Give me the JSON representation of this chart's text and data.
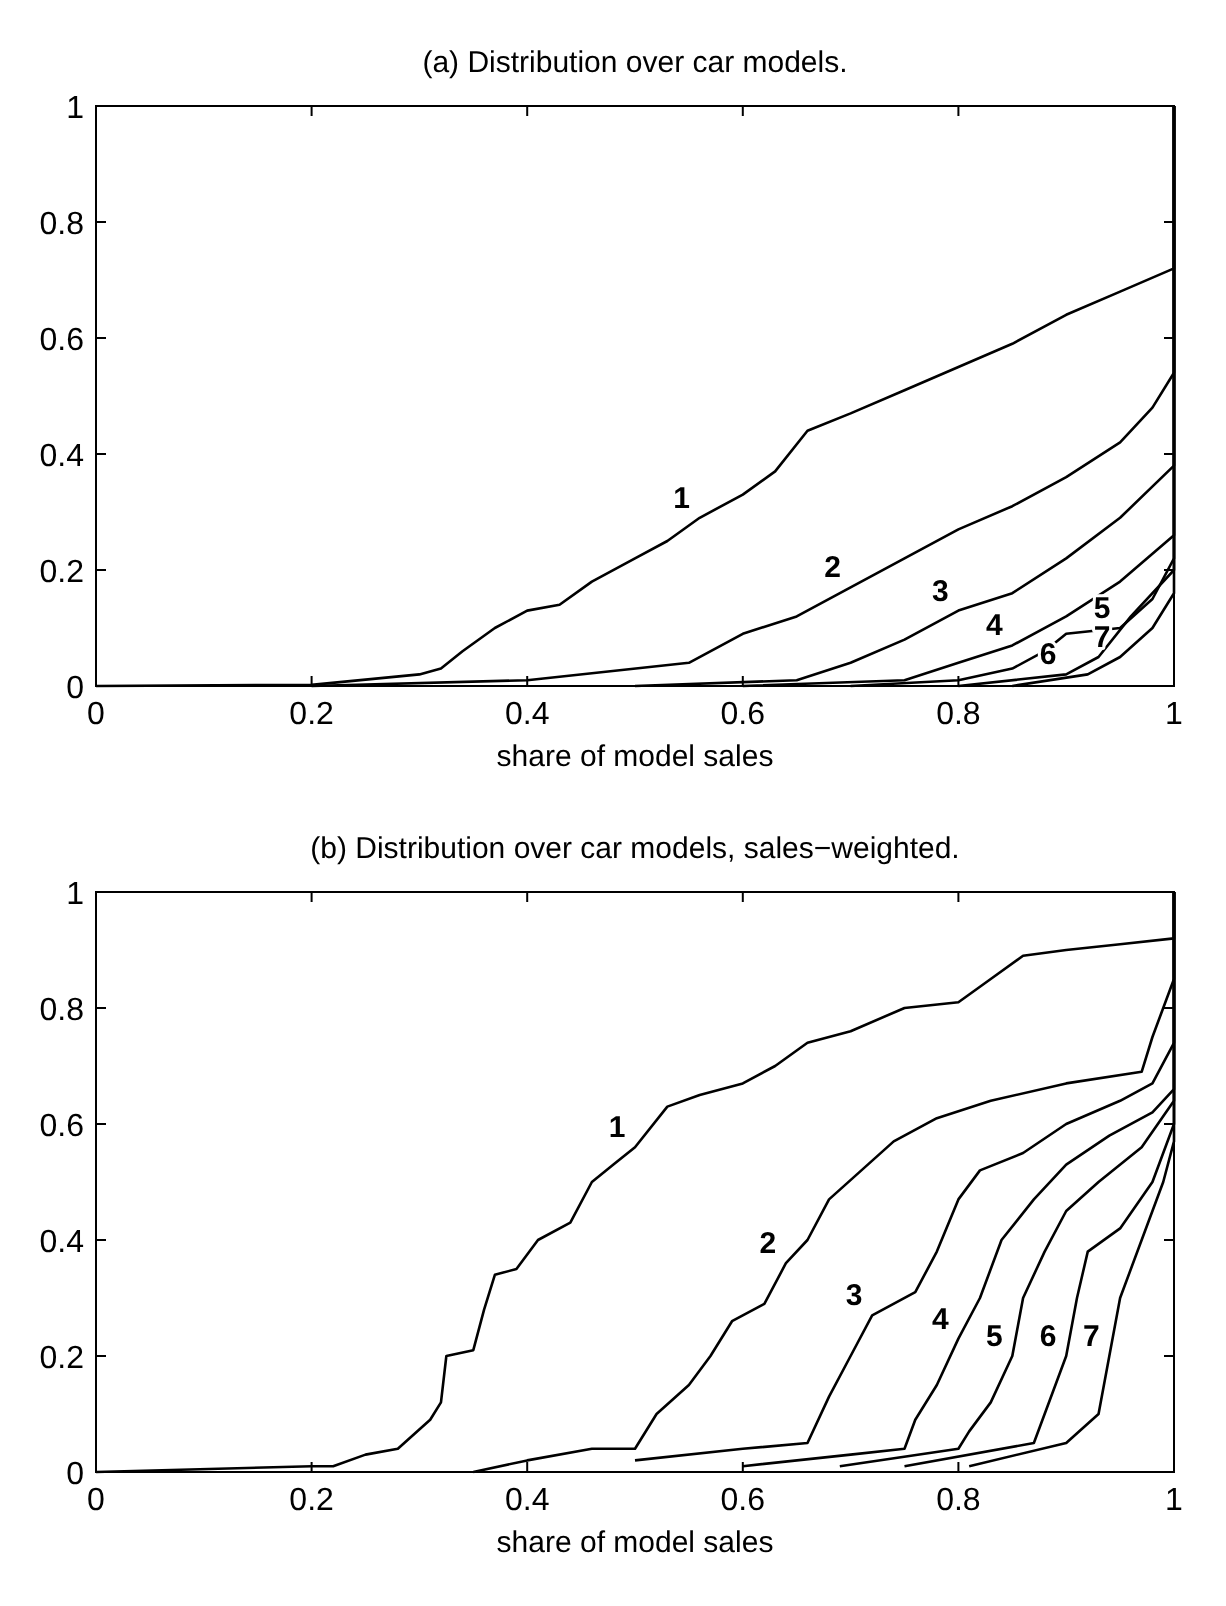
{
  "chart_data": [
    {
      "type": "line",
      "title": "(a) Distribution over car models.",
      "xlabel": "share of model sales",
      "xlim": [
        0,
        1
      ],
      "ylim": [
        0,
        1
      ],
      "xticks": [
        0,
        0.2,
        0.4,
        0.6,
        0.8,
        1
      ],
      "yticks": [
        0,
        0.2,
        0.4,
        0.6,
        0.8,
        1
      ],
      "series": [
        {
          "color": "#000000",
          "x": [
            0,
            0.2,
            0.3,
            0.32,
            0.34,
            0.37,
            0.4,
            0.43,
            0.46,
            0.5,
            0.53,
            0.56,
            0.6,
            0.63,
            0.66,
            0.7,
            0.75,
            0.8,
            0.85,
            0.9,
            0.95,
            1,
            1
          ],
          "values": [
            0,
            0.002,
            0.02,
            0.03,
            0.06,
            0.1,
            0.13,
            0.14,
            0.18,
            0.22,
            0.25,
            0.29,
            0.33,
            0.37,
            0.44,
            0.47,
            0.51,
            0.55,
            0.59,
            0.64,
            0.68,
            0.72,
            1
          ]
        },
        {
          "color": "#000000",
          "x": [
            0.2,
            0.4,
            0.55,
            0.6,
            0.65,
            0.7,
            0.75,
            0.8,
            0.85,
            0.9,
            0.95,
            0.98,
            1,
            1
          ],
          "values": [
            0,
            0.01,
            0.04,
            0.09,
            0.12,
            0.17,
            0.22,
            0.27,
            0.31,
            0.36,
            0.42,
            0.48,
            0.54,
            1
          ]
        },
        {
          "color": "#000000",
          "x": [
            0.5,
            0.65,
            0.7,
            0.75,
            0.8,
            0.85,
            0.9,
            0.95,
            1,
            1
          ],
          "values": [
            0,
            0.01,
            0.04,
            0.08,
            0.13,
            0.16,
            0.22,
            0.29,
            0.38,
            1
          ]
        },
        {
          "color": "#000000",
          "x": [
            0.6,
            0.75,
            0.8,
            0.85,
            0.9,
            0.95,
            1,
            1
          ],
          "values": [
            0,
            0.01,
            0.04,
            0.07,
            0.12,
            0.18,
            0.26,
            1
          ]
        },
        {
          "color": "#000000",
          "x": [
            0.7,
            0.8,
            0.85,
            0.88,
            0.9,
            0.95,
            0.98,
            1,
            1
          ],
          "values": [
            0,
            0.01,
            0.03,
            0.06,
            0.09,
            0.1,
            0.15,
            0.22,
            1
          ]
        },
        {
          "color": "#000000",
          "x": [
            0.8,
            0.9,
            0.93,
            0.96,
            1,
            1
          ],
          "values": [
            0,
            0.02,
            0.05,
            0.12,
            0.2,
            1
          ]
        },
        {
          "color": "#000000",
          "x": [
            0.85,
            0.92,
            0.95,
            0.98,
            1,
            1
          ],
          "values": [
            0,
            0.02,
            0.05,
            0.1,
            0.16,
            1
          ]
        }
      ],
      "annotations": [
        {
          "text": "1",
          "x": 0.56,
          "y": 0.29
        },
        {
          "text": "2",
          "x": 0.7,
          "y": 0.17
        },
        {
          "text": "3",
          "x": 0.8,
          "y": 0.13
        },
        {
          "text": "4",
          "x": 0.85,
          "y": 0.07
        },
        {
          "text": "5",
          "x": 0.95,
          "y": 0.1
        },
        {
          "text": "6",
          "x": 0.9,
          "y": 0.02
        },
        {
          "text": "7",
          "x": 0.95,
          "y": 0.05
        }
      ]
    },
    {
      "type": "line",
      "title": "(b) Distribution over car models, sales−weighted.",
      "xlabel": "share of model sales",
      "xlim": [
        0,
        1
      ],
      "ylim": [
        0,
        1
      ],
      "xticks": [
        0,
        0.2,
        0.4,
        0.6,
        0.8,
        1
      ],
      "yticks": [
        0,
        0.2,
        0.4,
        0.6,
        0.8,
        1
      ],
      "series": [
        {
          "color": "#000000",
          "x": [
            0,
            0.2,
            0.22,
            0.25,
            0.28,
            0.31,
            0.32,
            0.325,
            0.35,
            0.36,
            0.37,
            0.39,
            0.41,
            0.44,
            0.46,
            0.48,
            0.5,
            0.53,
            0.56,
            0.6,
            0.63,
            0.66,
            0.7,
            0.75,
            0.8,
            0.83,
            0.86,
            0.9,
            0.95,
            1,
            1
          ],
          "values": [
            0,
            0.01,
            0.01,
            0.03,
            0.04,
            0.09,
            0.12,
            0.2,
            0.21,
            0.28,
            0.34,
            0.35,
            0.4,
            0.43,
            0.5,
            0.53,
            0.56,
            0.63,
            0.65,
            0.67,
            0.7,
            0.74,
            0.76,
            0.8,
            0.81,
            0.85,
            0.89,
            0.9,
            0.91,
            0.92,
            1
          ]
        },
        {
          "color": "#000000",
          "x": [
            0.35,
            0.4,
            0.46,
            0.5,
            0.52,
            0.55,
            0.57,
            0.59,
            0.62,
            0.64,
            0.66,
            0.68,
            0.71,
            0.74,
            0.78,
            0.83,
            0.9,
            0.97,
            0.98,
            0.99,
            1,
            1
          ],
          "values": [
            0,
            0.02,
            0.04,
            0.04,
            0.1,
            0.15,
            0.2,
            0.26,
            0.29,
            0.36,
            0.4,
            0.47,
            0.52,
            0.57,
            0.61,
            0.64,
            0.67,
            0.69,
            0.75,
            0.8,
            0.85,
            1
          ]
        },
        {
          "color": "#000000",
          "x": [
            0.5,
            0.6,
            0.66,
            0.68,
            0.7,
            0.72,
            0.76,
            0.78,
            0.8,
            0.82,
            0.86,
            0.9,
            0.95,
            0.98,
            1,
            1
          ],
          "values": [
            0.02,
            0.04,
            0.05,
            0.13,
            0.2,
            0.27,
            0.31,
            0.38,
            0.47,
            0.52,
            0.55,
            0.6,
            0.64,
            0.67,
            0.74,
            1
          ]
        },
        {
          "color": "#000000",
          "x": [
            0.6,
            0.7,
            0.75,
            0.76,
            0.78,
            0.8,
            0.82,
            0.84,
            0.87,
            0.9,
            0.94,
            0.98,
            1,
            1
          ],
          "values": [
            0.01,
            0.03,
            0.04,
            0.09,
            0.15,
            0.23,
            0.3,
            0.4,
            0.47,
            0.53,
            0.58,
            0.62,
            0.66,
            1
          ]
        },
        {
          "color": "#000000",
          "x": [
            0.69,
            0.8,
            0.81,
            0.83,
            0.85,
            0.86,
            0.88,
            0.9,
            0.93,
            0.97,
            1,
            1
          ],
          "values": [
            0.01,
            0.04,
            0.07,
            0.12,
            0.2,
            0.3,
            0.38,
            0.45,
            0.5,
            0.56,
            0.64,
            1
          ]
        },
        {
          "color": "#000000",
          "x": [
            0.75,
            0.87,
            0.88,
            0.9,
            0.91,
            0.92,
            0.95,
            0.98,
            1,
            1
          ],
          "values": [
            0.01,
            0.05,
            0.1,
            0.2,
            0.3,
            0.38,
            0.42,
            0.5,
            0.6,
            1
          ]
        },
        {
          "color": "#000000",
          "x": [
            0.81,
            0.9,
            0.93,
            0.94,
            0.95,
            0.97,
            0.99,
            1,
            1
          ],
          "values": [
            0.01,
            0.05,
            0.1,
            0.2,
            0.3,
            0.4,
            0.5,
            0.57,
            1
          ]
        }
      ],
      "annotations": [
        {
          "text": "1",
          "x": 0.5,
          "y": 0.56
        },
        {
          "text": "2",
          "x": 0.64,
          "y": 0.36
        },
        {
          "text": "3",
          "x": 0.72,
          "y": 0.27
        },
        {
          "text": "4",
          "x": 0.8,
          "y": 0.23
        },
        {
          "text": "5",
          "x": 0.85,
          "y": 0.2
        },
        {
          "text": "6",
          "x": 0.9,
          "y": 0.2
        },
        {
          "text": "7",
          "x": 0.94,
          "y": 0.2
        }
      ]
    }
  ]
}
